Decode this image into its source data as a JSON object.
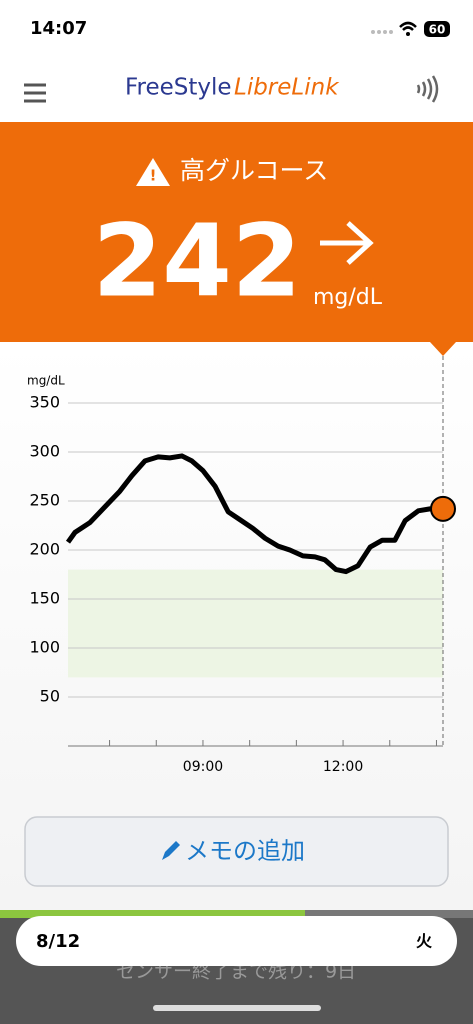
{
  "status_bar": {
    "time": "14:07",
    "battery": "60"
  },
  "header": {
    "logo_a": "FreeStyle",
    "logo_b": "LibreLink"
  },
  "alert": {
    "label": "高グルコース",
    "value": 242,
    "unit": "mg/dL"
  },
  "chart_data": {
    "type": "line",
    "y_label": "mg/dL",
    "x": [
      6.11,
      6.26,
      6.58,
      6.9,
      7.22,
      7.48,
      7.76,
      8.04,
      8.29,
      8.55,
      8.76,
      9.0,
      9.26,
      9.54,
      9.79,
      10.07,
      10.33,
      10.61,
      10.86,
      11.14,
      11.4,
      11.61,
      11.85,
      12.06,
      12.32,
      12.58,
      12.84,
      13.11,
      13.33,
      13.61,
      13.86,
      14.14
    ],
    "series": [
      {
        "color": "#000000",
        "values": [
          208,
          218,
          228,
          244,
          260,
          276,
          291,
          295,
          294,
          296,
          291,
          281,
          265,
          239,
          231,
          222,
          212,
          204,
          200,
          194,
          193,
          190,
          180,
          178,
          184,
          203,
          210,
          210,
          230,
          240,
          242,
          242
        ]
      }
    ],
    "xlim": [
      6.11,
      14.14
    ],
    "ylim": [
      0,
      360
    ],
    "yticks": [
      50,
      100,
      150,
      200,
      250,
      300,
      350
    ],
    "xticks": [
      {
        "value": 9,
        "label": "09:00"
      },
      {
        "value": 12,
        "label": "12:00"
      }
    ],
    "xminorticks": [
      7,
      8,
      10,
      11,
      13,
      14
    ],
    "target_range": [
      70,
      180
    ],
    "target_color": "#edf5e4",
    "grid": true,
    "current_color": "#ee6c0a"
  },
  "memo_button": "メモの追加",
  "footer": {
    "date": "8/12",
    "weekday": "火",
    "sensor": "センサー終了まで残り：9日"
  }
}
